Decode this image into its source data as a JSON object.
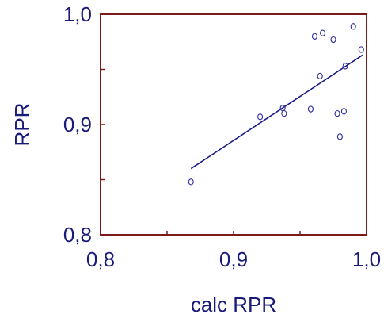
{
  "chart_data": {
    "type": "scatter",
    "title": "",
    "xlabel": "calc RPR",
    "ylabel": "RPR",
    "xlim": [
      0.8,
      1.0
    ],
    "ylim": [
      0.8,
      1.0
    ],
    "x_ticks": [
      0.8,
      0.85,
      0.9,
      0.95,
      1.0
    ],
    "y_ticks": [
      0.8,
      0.85,
      0.9,
      0.95,
      1.0
    ],
    "x_tick_labels": [
      "0,8",
      "",
      "0,9",
      "",
      "1,0"
    ],
    "y_tick_labels": [
      "0,8",
      "",
      "0,9",
      "",
      "1,0"
    ],
    "grid": false,
    "legend": "none",
    "points": [
      {
        "x": 0.868,
        "y": 0.848
      },
      {
        "x": 0.92,
        "y": 0.907
      },
      {
        "x": 0.937,
        "y": 0.915
      },
      {
        "x": 0.938,
        "y": 0.91
      },
      {
        "x": 0.958,
        "y": 0.914
      },
      {
        "x": 0.961,
        "y": 0.98
      },
      {
        "x": 0.965,
        "y": 0.944
      },
      {
        "x": 0.967,
        "y": 0.983
      },
      {
        "x": 0.975,
        "y": 0.977
      },
      {
        "x": 0.978,
        "y": 0.91
      },
      {
        "x": 0.98,
        "y": 0.889
      },
      {
        "x": 0.983,
        "y": 0.912
      },
      {
        "x": 0.984,
        "y": 0.953
      },
      {
        "x": 0.99,
        "y": 0.989
      },
      {
        "x": 0.996,
        "y": 0.968
      }
    ],
    "fit_line": {
      "x": [
        0.868,
        0.997
      ],
      "y": [
        0.86,
        0.963
      ]
    },
    "colors": {
      "text": "#1a1a7a",
      "frame": "#7a1a1a",
      "points": "#2a2aa0",
      "line": "#1a1a8a"
    }
  }
}
